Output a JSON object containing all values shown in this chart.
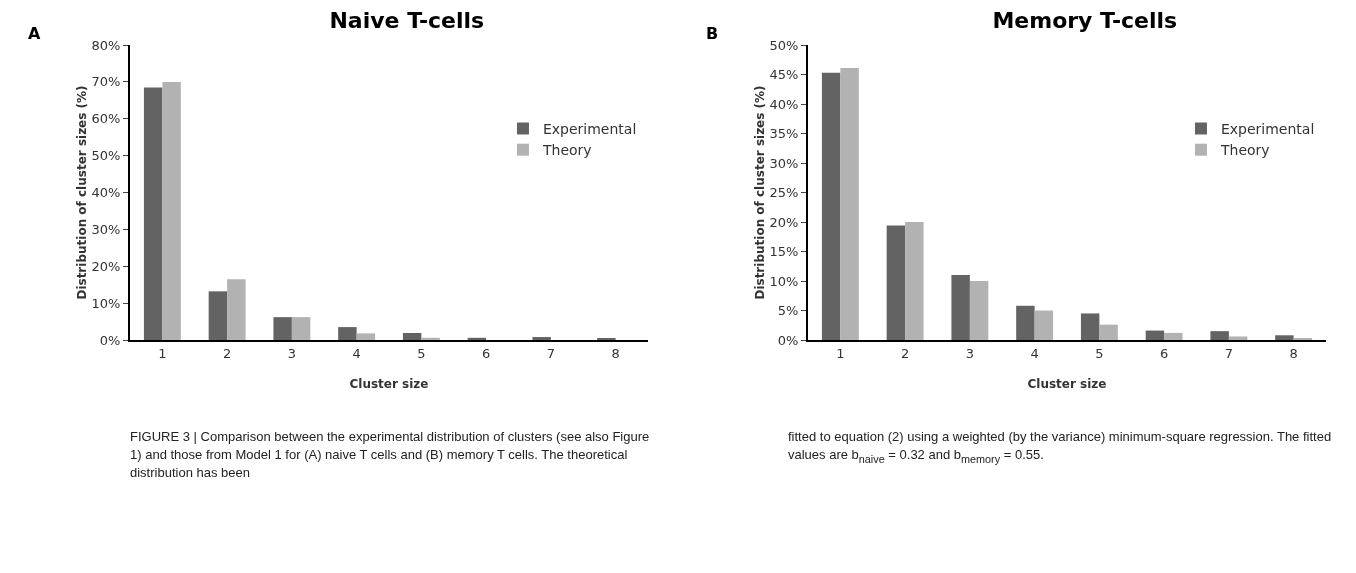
{
  "chart_data": [
    {
      "type": "bar",
      "title": "Naive T-cells",
      "xlabel": "Cluster size",
      "ylabel": "Distribution of cluster sizes (%)",
      "categories": [
        "1",
        "2",
        "3",
        "4",
        "5",
        "6",
        "7",
        "8"
      ],
      "series": [
        {
          "name": "Experimental",
          "color": "#636363",
          "values": [
            68.5,
            13.2,
            6.2,
            3.5,
            1.9,
            0.6,
            0.8,
            0.4
          ]
        },
        {
          "name": "Theory",
          "color": "#b2b2b2",
          "values": [
            70,
            16.5,
            6.2,
            1.8,
            0.6,
            null,
            null,
            null
          ]
        }
      ],
      "ylim": [
        0,
        80
      ],
      "yticks": [
        {
          "value": 0,
          "label": "0%"
        },
        {
          "value": 10,
          "label": "10%"
        },
        {
          "value": 20,
          "label": "20%"
        },
        {
          "value": 30,
          "label": "30%"
        },
        {
          "value": 40,
          "label": "40%"
        },
        {
          "value": 50,
          "label": "50%"
        },
        {
          "value": 60,
          "label": "60%"
        },
        {
          "value": 70,
          "label": "70%"
        },
        {
          "value": 80,
          "label": "80%"
        }
      ],
      "grid": false,
      "legend": "right",
      "annotations": [
        "A",
        "FIGURE 3 | Comparison between the experimental distribution of clusters (see also Figure 1) and those from Model 1 for (A) naive T cells and (B) memory T cells. The theoretical distribution has been"
      ]
    },
    {
      "type": "bar",
      "title": "Memory T-cells",
      "xlabel": "Cluster size",
      "ylabel": "Distribution of cluster sizes (%)",
      "categories": [
        "1",
        "2",
        "3",
        "4",
        "5",
        "6",
        "7",
        "8"
      ],
      "series": [
        {
          "name": "Experimental",
          "color": "#636363",
          "values": [
            45.3,
            19.4,
            11,
            5.8,
            4.5,
            1.6,
            1.5,
            0.8
          ]
        },
        {
          "name": "Theory",
          "color": "#b2b2b2",
          "values": [
            46.1,
            20,
            10,
            5,
            2.6,
            1.2,
            0.6,
            0.2
          ]
        }
      ],
      "ylim": [
        0,
        50
      ],
      "yticks": [
        {
          "value": 0,
          "label": "0%"
        },
        {
          "value": 5,
          "label": "5%"
        },
        {
          "value": 10,
          "label": "10%"
        },
        {
          "value": 15,
          "label": "15%"
        },
        {
          "value": 20,
          "label": "20%"
        },
        {
          "value": 25,
          "label": "25%"
        },
        {
          "value": 30,
          "label": "30%"
        },
        {
          "value": 35,
          "label": "35%"
        },
        {
          "value": 40,
          "label": "40%"
        },
        {
          "value": 45,
          "label": "45%"
        },
        {
          "value": 50,
          "label": "50%"
        }
      ],
      "grid": false,
      "legend": "right",
      "annotations": [
        "B",
        "fitted to equation (2) using a weighted (by the variance) minimum-square regression. The fitted values are b$_{naive}$ = 0.32 and b$_{memory}$ = 0.55."
      ]
    }
  ]
}
